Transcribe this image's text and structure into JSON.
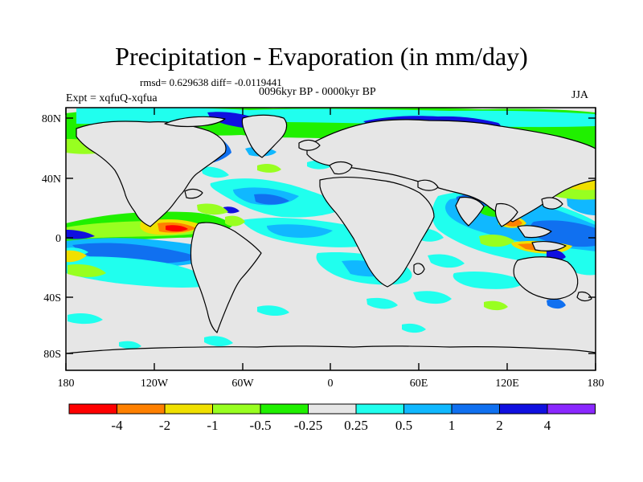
{
  "map": {
    "title": "Precipitation - Evaporation (in mm/day)",
    "stats": "rmsd= 0.629638 diff= -0.0119441",
    "period": "0096kyr BP - 0000kyr BP",
    "expt": "Expt = xqfuQ-xqfua",
    "season": "JJA",
    "lat_labels": [
      "80N",
      "40N",
      "0",
      "40S",
      "80S"
    ],
    "lon_labels": [
      "180",
      "120W",
      "60W",
      "0",
      "60E",
      "120E",
      "180"
    ]
  },
  "colorbar": {
    "labels": [
      "-4",
      "-2",
      "-1",
      "-0.5",
      "-0.25",
      "0.25",
      "0.5",
      "1",
      "2",
      "4"
    ],
    "colors": [
      "#ff0000",
      "#ff8000",
      "#f0e000",
      "#98ff20",
      "#20f000",
      "#e6e6e6",
      "#20ffee",
      "#10b8ff",
      "#1070f0",
      "#1010e0",
      "#8a28ff"
    ]
  },
  "style": {
    "land_color": "#e6e6e6",
    "coast_color": "#000000"
  }
}
